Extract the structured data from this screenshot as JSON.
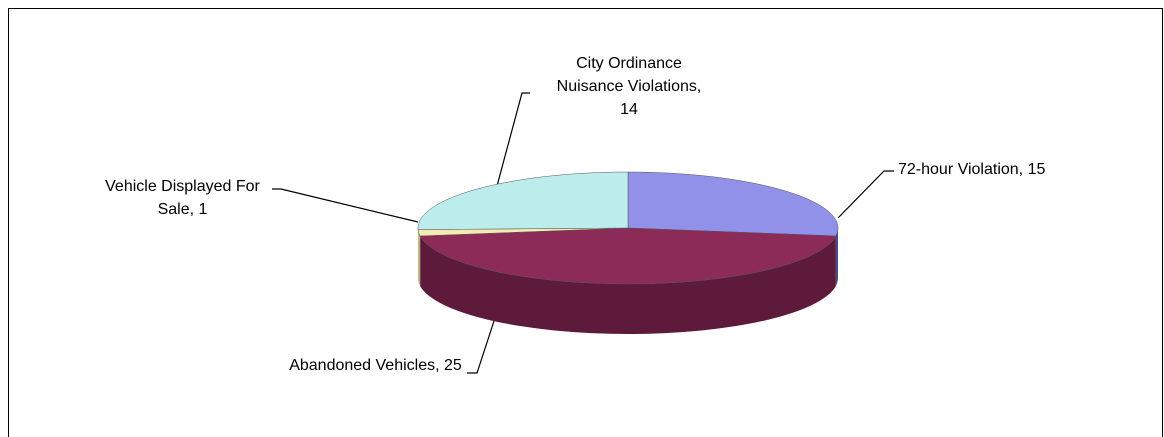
{
  "chart_data": {
    "type": "pie3d",
    "values": [
      15,
      25,
      1,
      14
    ],
    "value_labels": [
      "72-hour Violation, 15",
      "Abandoned Vehicles, 25",
      "Vehicle Displayed For Sale, 1",
      "City Ordinance Nuisance Violations, 14"
    ],
    "colors": [
      "#9191ea",
      "#8c2a58",
      "#f2ecb4",
      "#bcecec"
    ],
    "side_colors": [
      "#4a4a88",
      "#5e1a3a",
      "#b8b27e",
      "#7fb0b0"
    ]
  }
}
